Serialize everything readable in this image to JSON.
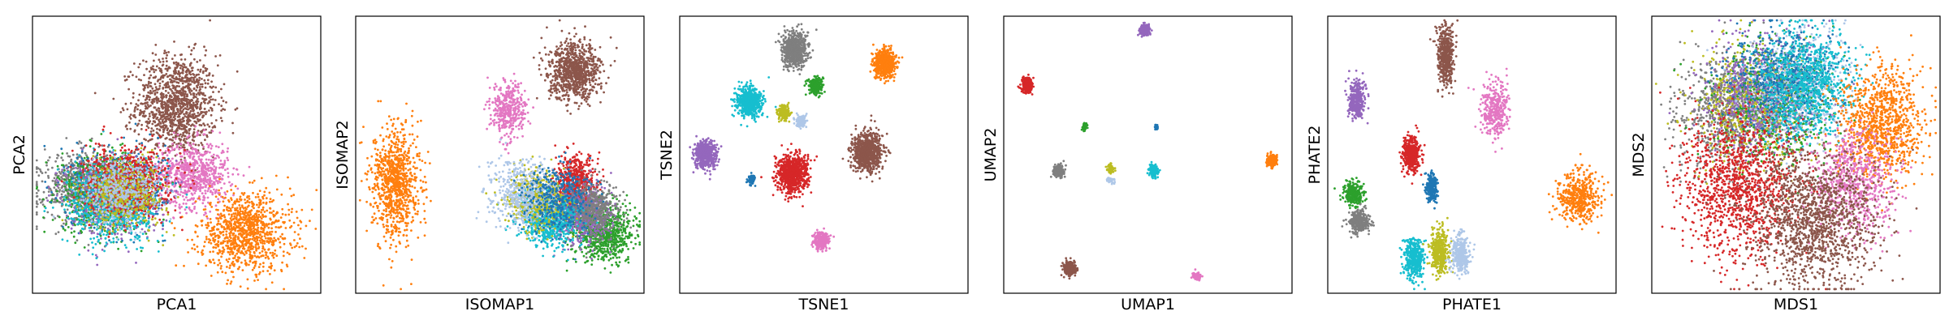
{
  "chart_data": [
    {
      "type": "scatter",
      "xlabel": "PCA1",
      "ylabel": "PCA2",
      "ticks": "none",
      "grid": false,
      "clusters": [
        {
          "color": "#8c564b",
          "cx": 0.5,
          "cy": 0.68,
          "sx": 0.07,
          "sy": 0.09,
          "n": 1200
        },
        {
          "color": "#e377c2",
          "cx": 0.56,
          "cy": 0.43,
          "sx": 0.06,
          "sy": 0.06,
          "n": 700
        },
        {
          "color": "#ff7f0e",
          "cx": 0.74,
          "cy": 0.22,
          "sx": 0.08,
          "sy": 0.07,
          "n": 1000
        },
        {
          "color": "#7f7f7f",
          "cx": 0.18,
          "cy": 0.38,
          "sx": 0.07,
          "sy": 0.06,
          "n": 800
        },
        {
          "color": "#2ca02c",
          "cx": 0.25,
          "cy": 0.36,
          "sx": 0.08,
          "sy": 0.07,
          "n": 700
        },
        {
          "color": "#1f77b4",
          "cx": 0.3,
          "cy": 0.38,
          "sx": 0.08,
          "sy": 0.07,
          "n": 600
        },
        {
          "color": "#9467bd",
          "cx": 0.28,
          "cy": 0.35,
          "sx": 0.08,
          "sy": 0.07,
          "n": 600
        },
        {
          "color": "#17becf",
          "cx": 0.28,
          "cy": 0.32,
          "sx": 0.08,
          "sy": 0.07,
          "n": 700
        },
        {
          "color": "#d62728",
          "cx": 0.33,
          "cy": 0.4,
          "sx": 0.07,
          "sy": 0.06,
          "n": 800
        },
        {
          "color": "#bcbd22",
          "cx": 0.32,
          "cy": 0.36,
          "sx": 0.07,
          "sy": 0.06,
          "n": 500
        },
        {
          "color": "#aec7e8",
          "cx": 0.3,
          "cy": 0.37,
          "sx": 0.07,
          "sy": 0.06,
          "n": 400
        }
      ]
    },
    {
      "type": "scatter",
      "xlabel": "ISOMAP1",
      "ylabel": "ISOMAP2",
      "ticks": "none",
      "grid": false,
      "clusters": [
        {
          "color": "#8c564b",
          "cx": 0.76,
          "cy": 0.8,
          "sx": 0.045,
          "sy": 0.05,
          "n": 900
        },
        {
          "color": "#e377c2",
          "cx": 0.53,
          "cy": 0.66,
          "sx": 0.03,
          "sy": 0.05,
          "n": 400
        },
        {
          "color": "#ff7f0e",
          "cx": 0.14,
          "cy": 0.4,
          "sx": 0.04,
          "sy": 0.1,
          "n": 900
        },
        {
          "color": "#d62728",
          "cx": 0.76,
          "cy": 0.39,
          "sx": 0.035,
          "sy": 0.05,
          "n": 700
        },
        {
          "color": "#2ca02c",
          "cx": 0.86,
          "cy": 0.22,
          "sx": 0.05,
          "sy": 0.05,
          "n": 800
        },
        {
          "color": "#9467bd",
          "cx": 0.78,
          "cy": 0.28,
          "sx": 0.05,
          "sy": 0.05,
          "n": 600
        },
        {
          "color": "#7f7f7f",
          "cx": 0.82,
          "cy": 0.3,
          "sx": 0.05,
          "sy": 0.05,
          "n": 500
        },
        {
          "color": "#17becf",
          "cx": 0.67,
          "cy": 0.27,
          "sx": 0.05,
          "sy": 0.05,
          "n": 700
        },
        {
          "color": "#bcbd22",
          "cx": 0.63,
          "cy": 0.34,
          "sx": 0.05,
          "sy": 0.05,
          "n": 500
        },
        {
          "color": "#aec7e8",
          "cx": 0.58,
          "cy": 0.36,
          "sx": 0.06,
          "sy": 0.06,
          "n": 500
        },
        {
          "color": "#1f77b4",
          "cx": 0.7,
          "cy": 0.34,
          "sx": 0.06,
          "sy": 0.06,
          "n": 400
        }
      ]
    },
    {
      "type": "scatter",
      "xlabel": "TSNE1",
      "ylabel": "TSNE2",
      "ticks": "none",
      "grid": false,
      "clusters": [
        {
          "color": "#7f7f7f",
          "cx": 0.4,
          "cy": 0.88,
          "sx": 0.022,
          "sy": 0.03,
          "n": 700
        },
        {
          "color": "#ff7f0e",
          "cx": 0.71,
          "cy": 0.83,
          "sx": 0.018,
          "sy": 0.025,
          "n": 600
        },
        {
          "color": "#17becf",
          "cx": 0.24,
          "cy": 0.69,
          "sx": 0.022,
          "sy": 0.028,
          "n": 600
        },
        {
          "color": "#2ca02c",
          "cx": 0.47,
          "cy": 0.75,
          "sx": 0.012,
          "sy": 0.015,
          "n": 250
        },
        {
          "color": "#bcbd22",
          "cx": 0.36,
          "cy": 0.65,
          "sx": 0.01,
          "sy": 0.013,
          "n": 200
        },
        {
          "color": "#aec7e8",
          "cx": 0.42,
          "cy": 0.62,
          "sx": 0.008,
          "sy": 0.011,
          "n": 150
        },
        {
          "color": "#9467bd",
          "cx": 0.09,
          "cy": 0.5,
          "sx": 0.02,
          "sy": 0.025,
          "n": 500
        },
        {
          "color": "#d62728",
          "cx": 0.39,
          "cy": 0.43,
          "sx": 0.026,
          "sy": 0.035,
          "n": 800
        },
        {
          "color": "#8c564b",
          "cx": 0.65,
          "cy": 0.51,
          "sx": 0.026,
          "sy": 0.035,
          "n": 800
        },
        {
          "color": "#1f77b4",
          "cx": 0.25,
          "cy": 0.41,
          "sx": 0.006,
          "sy": 0.008,
          "n": 80
        },
        {
          "color": "#e377c2",
          "cx": 0.49,
          "cy": 0.19,
          "sx": 0.012,
          "sy": 0.016,
          "n": 250
        }
      ]
    },
    {
      "type": "scatter",
      "xlabel": "UMAP1",
      "ylabel": "UMAP2",
      "ticks": "none",
      "grid": false,
      "clusters": [
        {
          "color": "#9467bd",
          "cx": 0.49,
          "cy": 0.95,
          "sx": 0.008,
          "sy": 0.01,
          "n": 200
        },
        {
          "color": "#d62728",
          "cx": 0.08,
          "cy": 0.75,
          "sx": 0.01,
          "sy": 0.013,
          "n": 250
        },
        {
          "color": "#2ca02c",
          "cx": 0.28,
          "cy": 0.6,
          "sx": 0.005,
          "sy": 0.007,
          "n": 60
        },
        {
          "color": "#1f77b4",
          "cx": 0.53,
          "cy": 0.6,
          "sx": 0.003,
          "sy": 0.005,
          "n": 30
        },
        {
          "color": "#7f7f7f",
          "cx": 0.19,
          "cy": 0.44,
          "sx": 0.009,
          "sy": 0.011,
          "n": 200
        },
        {
          "color": "#bcbd22",
          "cx": 0.37,
          "cy": 0.45,
          "sx": 0.006,
          "sy": 0.007,
          "n": 80
        },
        {
          "color": "#aec7e8",
          "cx": 0.37,
          "cy": 0.41,
          "sx": 0.006,
          "sy": 0.005,
          "n": 60
        },
        {
          "color": "#17becf",
          "cx": 0.52,
          "cy": 0.44,
          "sx": 0.008,
          "sy": 0.01,
          "n": 200
        },
        {
          "color": "#ff7f0e",
          "cx": 0.93,
          "cy": 0.48,
          "sx": 0.008,
          "sy": 0.01,
          "n": 200
        },
        {
          "color": "#8c564b",
          "cx": 0.23,
          "cy": 0.09,
          "sx": 0.01,
          "sy": 0.012,
          "n": 250
        },
        {
          "color": "#e377c2",
          "cx": 0.67,
          "cy": 0.06,
          "sx": 0.006,
          "sy": 0.008,
          "n": 100
        }
      ]
    },
    {
      "type": "scatter",
      "xlabel": "PHATE1",
      "ylabel": "PHATE2",
      "ticks": "none",
      "grid": false,
      "clusters": [
        {
          "color": "#8c564b",
          "cx": 0.41,
          "cy": 0.86,
          "sx": 0.014,
          "sy": 0.05,
          "n": 500
        },
        {
          "color": "#9467bd",
          "cx": 0.1,
          "cy": 0.7,
          "sx": 0.014,
          "sy": 0.035,
          "n": 350
        },
        {
          "color": "#e377c2",
          "cx": 0.58,
          "cy": 0.66,
          "sx": 0.025,
          "sy": 0.05,
          "n": 350
        },
        {
          "color": "#d62728",
          "cx": 0.29,
          "cy": 0.5,
          "sx": 0.014,
          "sy": 0.03,
          "n": 450
        },
        {
          "color": "#1f77b4",
          "cx": 0.36,
          "cy": 0.38,
          "sx": 0.01,
          "sy": 0.025,
          "n": 250
        },
        {
          "color": "#2ca02c",
          "cx": 0.09,
          "cy": 0.36,
          "sx": 0.016,
          "sy": 0.025,
          "n": 300
        },
        {
          "color": "#7f7f7f",
          "cx": 0.11,
          "cy": 0.26,
          "sx": 0.016,
          "sy": 0.02,
          "n": 300
        },
        {
          "color": "#ff7f0e",
          "cx": 0.87,
          "cy": 0.34,
          "sx": 0.035,
          "sy": 0.045,
          "n": 450
        },
        {
          "color": "#17becf",
          "cx": 0.3,
          "cy": 0.12,
          "sx": 0.018,
          "sy": 0.035,
          "n": 400
        },
        {
          "color": "#bcbd22",
          "cx": 0.39,
          "cy": 0.15,
          "sx": 0.015,
          "sy": 0.04,
          "n": 400
        },
        {
          "color": "#aec7e8",
          "cx": 0.46,
          "cy": 0.14,
          "sx": 0.015,
          "sy": 0.035,
          "n": 350
        }
      ]
    },
    {
      "type": "scatter",
      "xlabel": "MDS1",
      "ylabel": "MDS2",
      "ticks": "none",
      "grid": false,
      "clusters": [
        {
          "color": "#7f7f7f",
          "cx": 0.28,
          "cy": 0.66,
          "sx": 0.09,
          "sy": 0.1,
          "n": 900
        },
        {
          "color": "#bcbd22",
          "cx": 0.36,
          "cy": 0.68,
          "sx": 0.1,
          "sy": 0.11,
          "n": 700
        },
        {
          "color": "#2ca02c",
          "cx": 0.44,
          "cy": 0.7,
          "sx": 0.1,
          "sy": 0.11,
          "n": 600
        },
        {
          "color": "#9467bd",
          "cx": 0.38,
          "cy": 0.72,
          "sx": 0.1,
          "sy": 0.1,
          "n": 600
        },
        {
          "color": "#aec7e8",
          "cx": 0.5,
          "cy": 0.74,
          "sx": 0.09,
          "sy": 0.1,
          "n": 600
        },
        {
          "color": "#1f77b4",
          "cx": 0.46,
          "cy": 0.78,
          "sx": 0.09,
          "sy": 0.09,
          "n": 600
        },
        {
          "color": "#17becf",
          "cx": 0.54,
          "cy": 0.76,
          "sx": 0.08,
          "sy": 0.09,
          "n": 900
        },
        {
          "color": "#ff7f0e",
          "cx": 0.8,
          "cy": 0.62,
          "sx": 0.07,
          "sy": 0.1,
          "n": 1000
        },
        {
          "color": "#e377c2",
          "cx": 0.7,
          "cy": 0.4,
          "sx": 0.07,
          "sy": 0.09,
          "n": 700
        },
        {
          "color": "#d62728",
          "cx": 0.3,
          "cy": 0.38,
          "sx": 0.1,
          "sy": 0.12,
          "n": 1200
        },
        {
          "color": "#8c564b",
          "cx": 0.56,
          "cy": 0.26,
          "sx": 0.11,
          "sy": 0.12,
          "n": 1400
        }
      ]
    }
  ]
}
